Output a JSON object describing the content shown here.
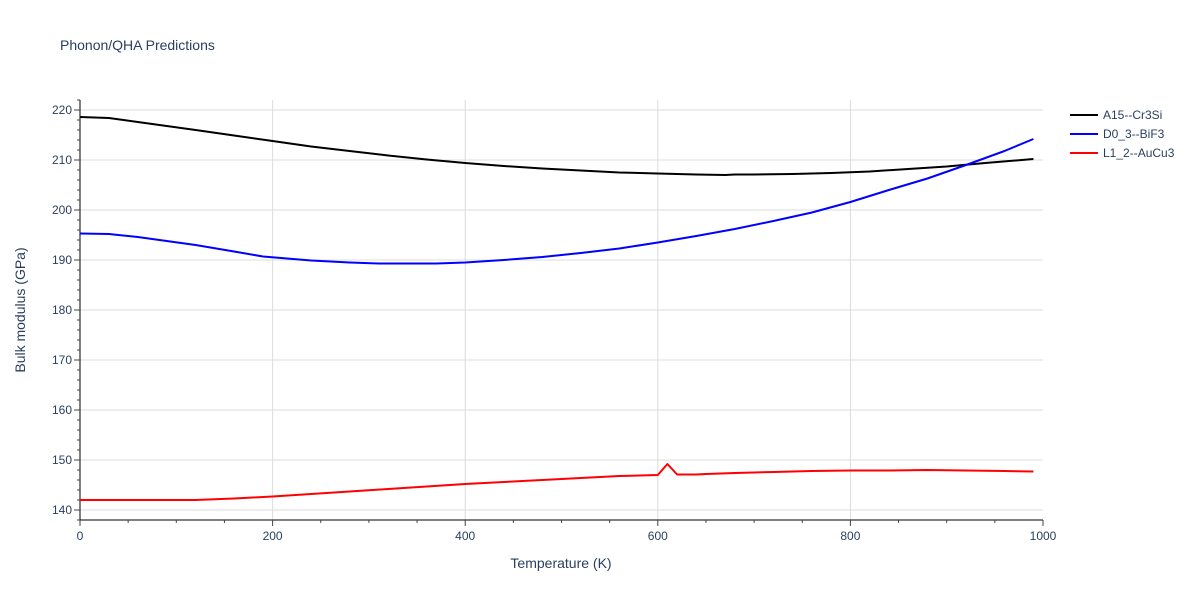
{
  "chart_data": {
    "type": "line",
    "title": "Phonon/QHA Predictions",
    "xlabel": "Temperature (K)",
    "ylabel": "Bulk modulus (GPa)",
    "xlim": [
      0,
      1000
    ],
    "ylim": [
      138,
      222
    ],
    "xticks": [
      0,
      200,
      400,
      600,
      800,
      1000
    ],
    "yticks": [
      140,
      150,
      160,
      170,
      180,
      190,
      200,
      210,
      220
    ],
    "grid": true,
    "legend_position": "top-right",
    "series": [
      {
        "name": "A15--Cr3Si",
        "color": "#000000",
        "x": [
          0,
          30,
          60,
          90,
          120,
          160,
          200,
          240,
          280,
          320,
          360,
          400,
          440,
          480,
          520,
          560,
          600,
          640,
          670,
          680,
          700,
          740,
          780,
          820,
          860,
          900,
          940,
          990
        ],
        "y": [
          218.6,
          218.4,
          217.6,
          216.8,
          216.0,
          214.9,
          213.8,
          212.7,
          211.8,
          210.9,
          210.1,
          209.4,
          208.8,
          208.3,
          207.9,
          207.5,
          207.3,
          207.1,
          207.0,
          207.1,
          207.1,
          207.2,
          207.4,
          207.7,
          208.2,
          208.7,
          209.4,
          210.2
        ]
      },
      {
        "name": "D0_3--BiF3",
        "color": "#0000ff",
        "x": [
          0,
          30,
          60,
          90,
          120,
          160,
          190,
          240,
          280,
          310,
          340,
          370,
          400,
          440,
          480,
          520,
          560,
          600,
          640,
          680,
          720,
          760,
          800,
          840,
          880,
          920,
          960,
          990
        ],
        "y": [
          195.3,
          195.2,
          194.6,
          193.8,
          193.0,
          191.7,
          190.7,
          189.9,
          189.5,
          189.3,
          189.3,
          189.3,
          189.5,
          190.0,
          190.6,
          191.4,
          192.3,
          193.5,
          194.8,
          196.2,
          197.8,
          199.5,
          201.6,
          204.0,
          206.3,
          209.0,
          211.8,
          214.2
        ]
      },
      {
        "name": "L1_2--AuCu3",
        "color": "#ff0000",
        "x": [
          0,
          40,
          80,
          120,
          160,
          200,
          240,
          280,
          320,
          360,
          400,
          440,
          480,
          520,
          560,
          600,
          610,
          620,
          640,
          650,
          680,
          720,
          760,
          800,
          840,
          880,
          920,
          960,
          990
        ],
        "y": [
          142.0,
          142.0,
          142.0,
          142.0,
          142.3,
          142.7,
          143.2,
          143.7,
          144.2,
          144.7,
          145.2,
          145.6,
          146.0,
          146.4,
          146.8,
          147.0,
          149.2,
          147.1,
          147.1,
          147.2,
          147.4,
          147.6,
          147.8,
          147.9,
          147.9,
          148.0,
          147.9,
          147.8,
          147.7
        ]
      }
    ]
  }
}
